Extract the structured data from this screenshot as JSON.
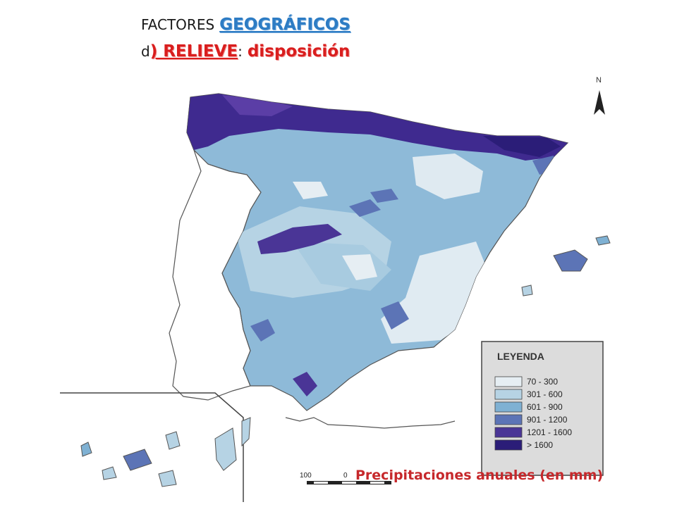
{
  "title": {
    "line1_prefix": "FACTORES",
    "line1_highlight": "GEOGRÁFICOS",
    "line2_prefix": "d",
    "line2_highlight": ") RELIEVE",
    "line2_sep": ":",
    "line2_tail": "disposición"
  },
  "north_label": "N",
  "legend": {
    "title": "LEYENDA",
    "items": [
      {
        "label": "70 - 300",
        "color": "#e6eef3"
      },
      {
        "label": "301 - 600",
        "color": "#b6d3e4"
      },
      {
        "label": "601 - 900",
        "color": "#7fb1d3"
      },
      {
        "label": "901 - 1200",
        "color": "#5c74b6"
      },
      {
        "label": "1201 - 1600",
        "color": "#4a3596"
      },
      {
        "label": "> 1600",
        "color": "#2b1d78"
      }
    ]
  },
  "scale": {
    "left_label": "100",
    "zero_label": "0"
  },
  "caption": "Precipitaciones anuales (en mm)"
}
